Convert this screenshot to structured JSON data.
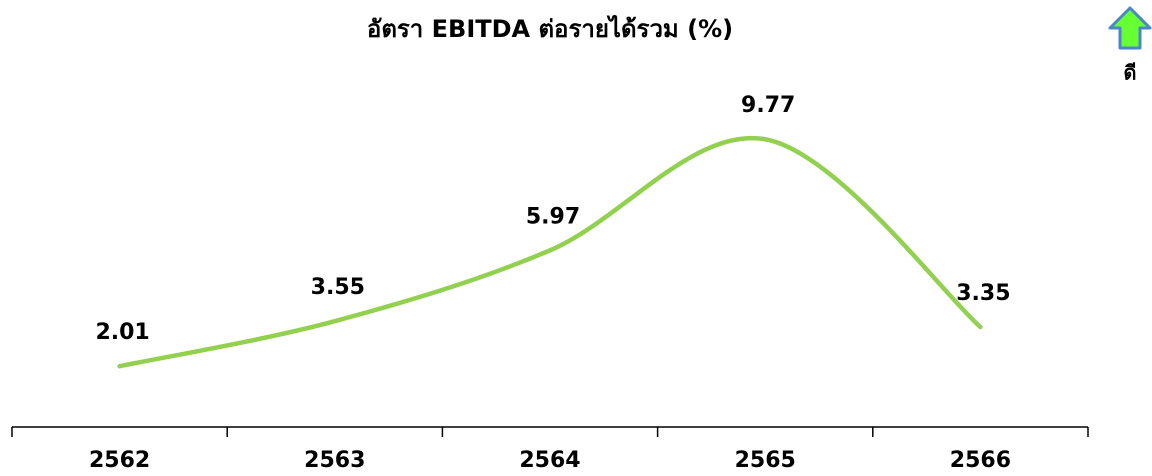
{
  "chart_data": {
    "type": "line",
    "title": "อัตรา EBITDA ต่อรายได้รวม (%)",
    "categories": [
      "2562",
      "2563",
      "2564",
      "2565",
      "2566"
    ],
    "values": [
      2.01,
      3.55,
      5.97,
      9.77,
      3.35
    ],
    "color": "#92d050",
    "smooth": true,
    "ylim": [
      0,
      12
    ]
  },
  "indicator": {
    "label": "ดี"
  }
}
